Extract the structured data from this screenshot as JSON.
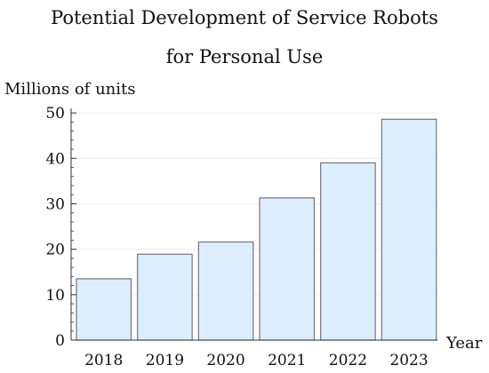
{
  "chart_data": {
    "type": "bar",
    "title": [
      "Potential Development of Service Robots",
      "for Personal Use"
    ],
    "ylabel": "Millions of units",
    "xlabel": "Year",
    "categories": [
      "2018",
      "2019",
      "2020",
      "2021",
      "2022",
      "2023"
    ],
    "values": [
      13.5,
      18.9,
      21.6,
      31.3,
      39.0,
      48.6
    ],
    "ylim": [
      0,
      51
    ],
    "yticks": [
      0,
      10,
      20,
      30,
      40,
      50
    ],
    "grid": "horizontal",
    "colors": {
      "bar_fill": "#ddeeff",
      "bar_stroke": "#6e7680",
      "axis": "#333333",
      "grid": "#eeeeee"
    }
  }
}
